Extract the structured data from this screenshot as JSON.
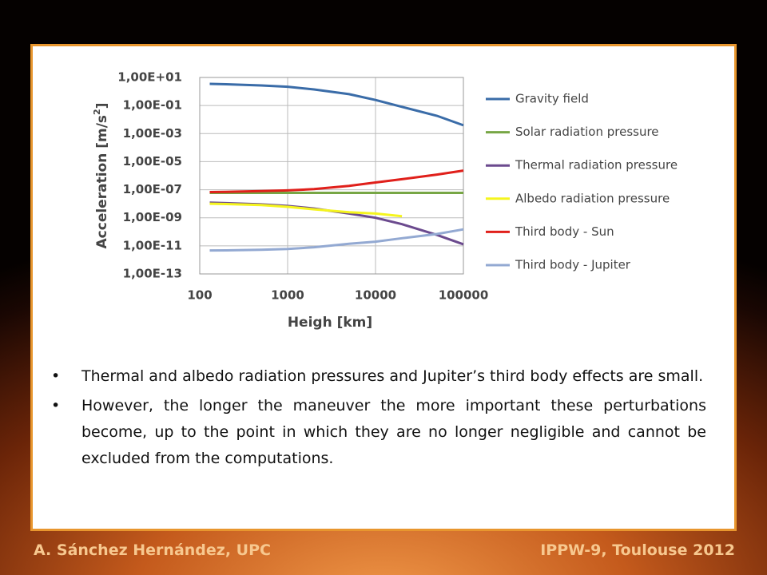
{
  "chart_data": {
    "type": "line",
    "ylabel": {
      "text": "Acceleration [m/s",
      "sup": "2",
      "end": "]"
    },
    "xlabel": "Heigh [km]",
    "x": [
      130,
      200,
      500,
      1000,
      2000,
      5000,
      10000,
      20000,
      50000,
      100000
    ],
    "series": [
      {
        "name": "Gravity field",
        "color": "#3a6ca8",
        "values": [
          3.5,
          3.3,
          2.7,
          2.2,
          1.4,
          0.65,
          0.25,
          0.08,
          0.0186,
          0.0039
        ]
      },
      {
        "name": "Solar radiation pressure",
        "color": "#77a645",
        "values": [
          6e-08,
          6e-08,
          6e-08,
          6e-08,
          6e-08,
          6e-08,
          6e-08,
          6e-08,
          6e-08,
          6e-08
        ]
      },
      {
        "name": "Thermal radiation pressure",
        "color": "#6b4a8e",
        "values": [
          1.2e-08,
          1.1e-08,
          9e-09,
          7e-09,
          4.6e-09,
          2e-09,
          1e-09,
          3.5e-10,
          6e-11,
          1.3e-11
        ]
      },
      {
        "name": "Albedo radiation pressure",
        "color": "#f5f51e",
        "values": [
          1e-08,
          9.5e-09,
          8e-09,
          6e-09,
          4e-09,
          2.5e-09,
          2e-09,
          1.3e-09,
          null,
          null
        ]
      },
      {
        "name": "Third body - Sun",
        "color": "#e0201b",
        "values": [
          6.8e-08,
          7e-08,
          8e-08,
          9e-08,
          1.1e-07,
          1.9e-07,
          3.3e-07,
          5.6e-07,
          1.2e-06,
          2.3e-06
        ]
      },
      {
        "name": "Third body - Jupiter",
        "color": "#93a9d2",
        "values": [
          4.7e-12,
          4.8e-12,
          5.3e-12,
          6e-12,
          8e-12,
          1.4e-11,
          2e-11,
          3.5e-11,
          7e-11,
          1.5e-10
        ]
      }
    ],
    "xlog": true,
    "ylog": true,
    "xlim": [
      100,
      100000
    ],
    "xticks": [
      100,
      1000,
      10000,
      100000
    ],
    "ylim": [
      1e-13,
      10
    ],
    "yticks": [
      {
        "value": 10,
        "label": "1,00E+01"
      },
      {
        "value": 0.1,
        "label": "1,00E-01"
      },
      {
        "value": 0.001,
        "label": "1,00E-03"
      },
      {
        "value": 1e-05,
        "label": "1,00E-05"
      },
      {
        "value": 1e-07,
        "label": "1,00E-07"
      },
      {
        "value": 1e-09,
        "label": "1,00E-09"
      },
      {
        "value": 1e-11,
        "label": "1,00E-11"
      },
      {
        "value": 1e-13,
        "label": "1,00E-13"
      }
    ],
    "grid": true,
    "legend": "right"
  },
  "bullets": [
    "Thermal and albedo radiation pressures and Jupiter’s third body effects are small.",
    "However, the longer the maneuver the more important these perturbations become, up to the point in which they are no longer negligible and cannot be excluded from the computations."
  ],
  "footer": {
    "left": "A. Sánchez Hernández, UPC",
    "right": "IPPW-9, Toulouse 2012"
  }
}
